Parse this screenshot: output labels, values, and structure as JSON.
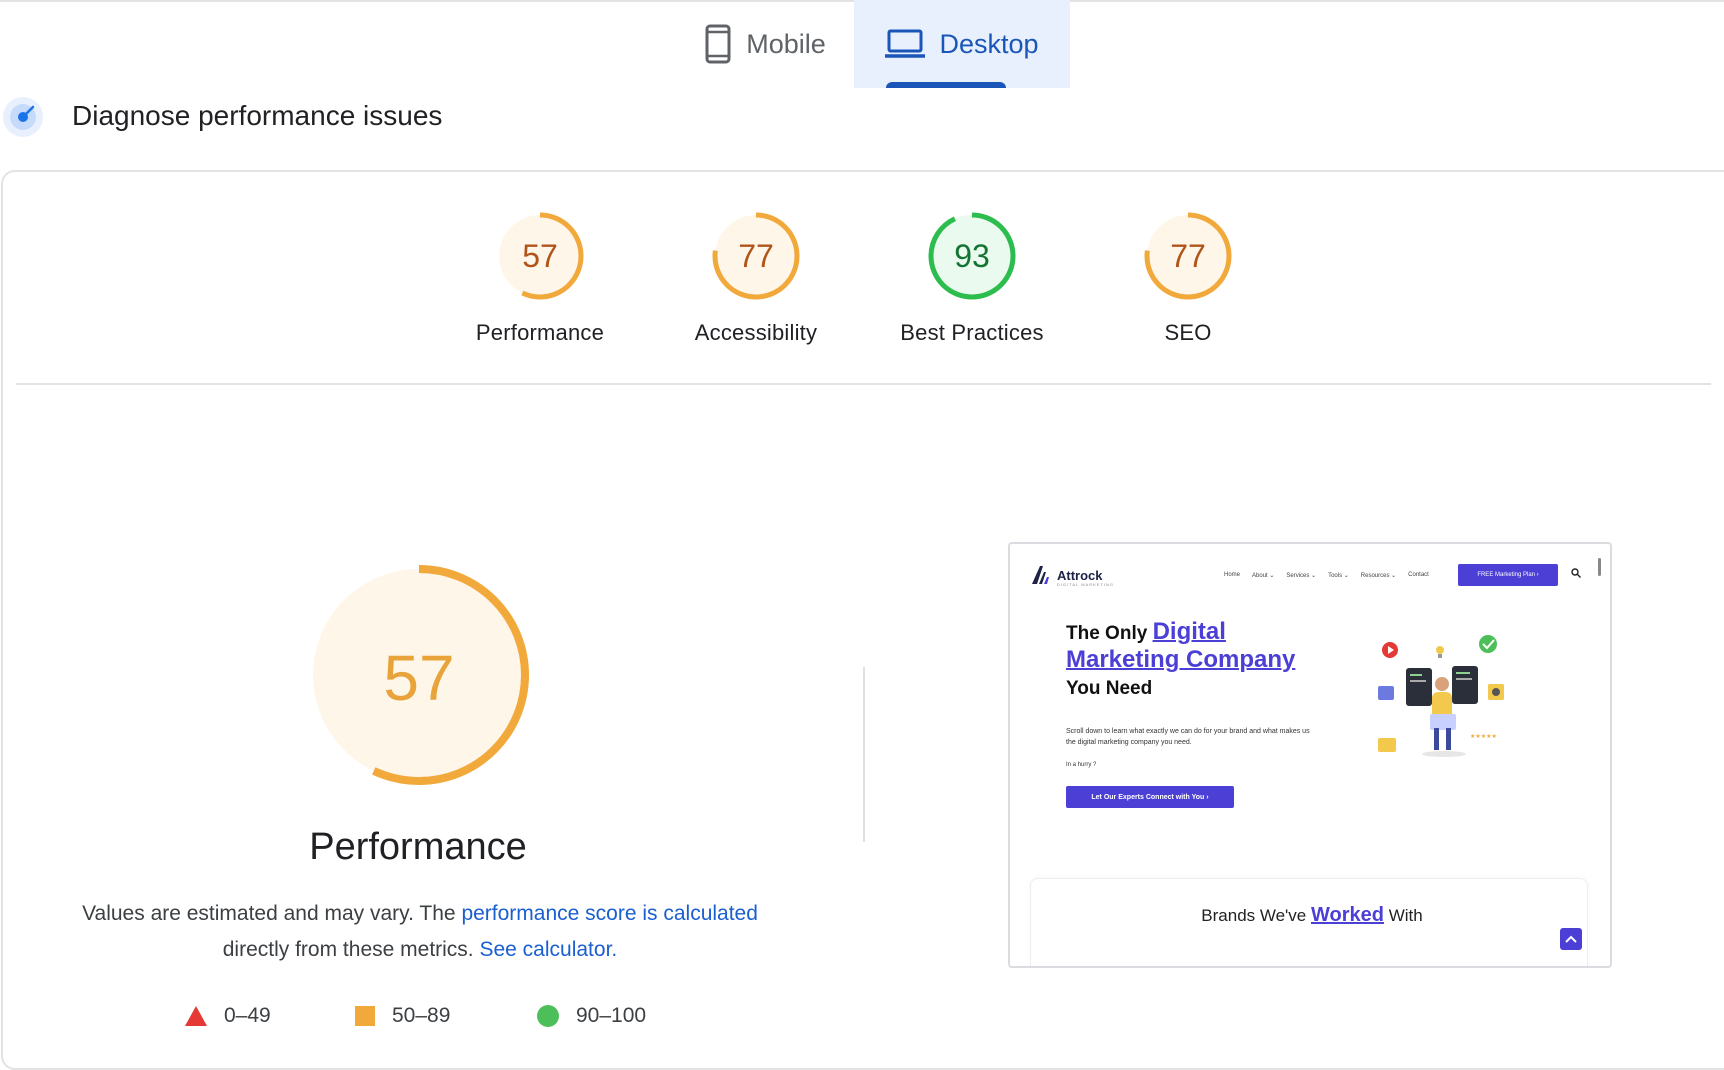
{
  "tabs": [
    {
      "label": "Mobile",
      "icon": "phone-icon",
      "selected": false
    },
    {
      "label": "Desktop",
      "icon": "laptop-icon",
      "selected": true
    }
  ],
  "diagnose": {
    "title": "Diagnose performance issues",
    "icon": "gauge-icon"
  },
  "scores": [
    {
      "name": "Performance",
      "score": 57,
      "status": "average"
    },
    {
      "name": "Accessibility",
      "score": 77,
      "status": "average"
    },
    {
      "name": "Best Practices",
      "score": 93,
      "status": "pass"
    },
    {
      "name": "SEO",
      "score": 77,
      "status": "average"
    }
  ],
  "main": {
    "score": 57,
    "label": "Performance",
    "desc_prefix": "Values are estimated and may vary. The ",
    "desc_link1": "performance score is calculated",
    "desc_middle": " directly from these metrics. ",
    "desc_link2": "See calculator."
  },
  "legend": [
    {
      "range": "0–49",
      "shape": "triangle",
      "color": "#e53935"
    },
    {
      "range": "50–89",
      "shape": "square",
      "color": "#f2a93b"
    },
    {
      "range": "90–100",
      "shape": "circle",
      "color": "#4cbf5a"
    }
  ],
  "colors": {
    "average_stroke": "#f2a93b",
    "average_text": "#b0541a",
    "average_fill": "#fff6ea",
    "pass_stroke": "#2dbd4e",
    "pass_text": "#137333",
    "pass_fill": "#eafaee",
    "big_text": "#e8a33a"
  },
  "preview": {
    "logo": "Attrock",
    "logo_sub": "DIGITAL MARKETING",
    "nav": [
      "Home",
      "About ⌄",
      "Services ⌄",
      "Tools ⌄",
      "Resources ⌄",
      "Contact"
    ],
    "cta": "FREE Marketing Plan  ›",
    "headline_start": "The Only ",
    "headline_highlight": "Digital Marketing Company",
    "headline_end": "You Need",
    "paragraph": "Scroll down to learn what exactly we can do for your brand and what makes us the digital marketing company you need.",
    "hurry": "In a hurry ?",
    "button": "Let Our Experts Connect with You  ›",
    "brands_start": "Brands We've ",
    "brands_highlight": "Worked",
    "brands_end": " With"
  }
}
